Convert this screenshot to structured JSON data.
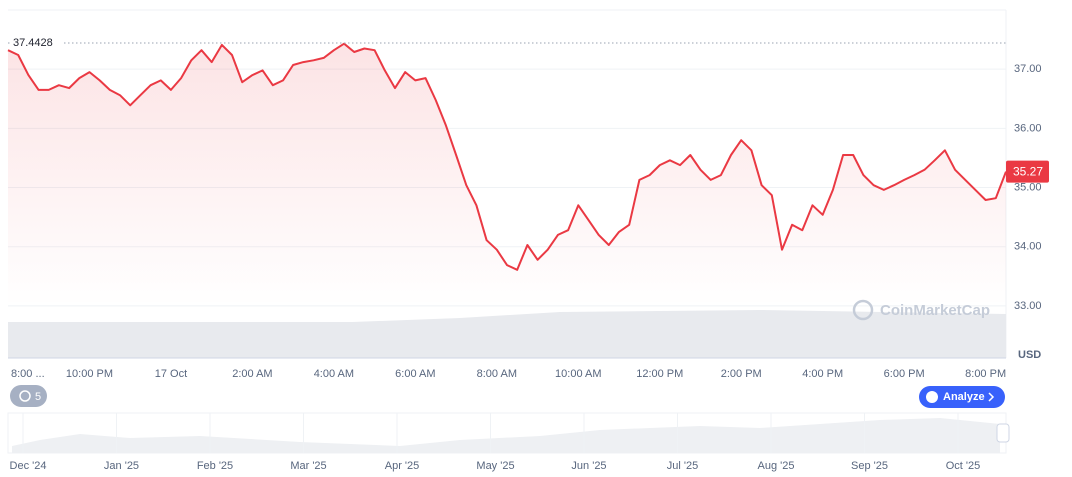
{
  "chart_data": {
    "type": "line",
    "color": "#ea3943",
    "y_unit": "USD",
    "watermark": "CoinMarketCap",
    "reference_line": 37.4428,
    "history_count": 5,
    "analyze_button": "Analyze",
    "ylim": [
      32.12,
      38.0
    ],
    "yticks": [
      {
        "value": 33,
        "label": "33.00"
      },
      {
        "value": 34,
        "label": "34.00"
      },
      {
        "value": 35,
        "label": "35.00"
      },
      {
        "value": 36,
        "label": "36.00"
      },
      {
        "value": 37,
        "label": "37.00"
      }
    ],
    "categories": [
      "8:00 ...",
      null,
      null,
      null,
      null,
      null,
      null,
      null,
      "10:00 PM",
      null,
      null,
      null,
      null,
      null,
      null,
      null,
      "17 Oct",
      null,
      null,
      null,
      null,
      null,
      null,
      null,
      "2:00 AM",
      null,
      null,
      null,
      null,
      null,
      null,
      null,
      "4:00 AM",
      null,
      null,
      null,
      null,
      null,
      null,
      null,
      "6:00 AM",
      null,
      null,
      null,
      null,
      null,
      null,
      null,
      "8:00 AM",
      null,
      null,
      null,
      null,
      null,
      null,
      null,
      "10:00 AM",
      null,
      null,
      null,
      null,
      null,
      null,
      null,
      "12:00 PM",
      null,
      null,
      null,
      null,
      null,
      null,
      null,
      "2:00 PM",
      null,
      null,
      null,
      null,
      null,
      null,
      null,
      "4:00 PM",
      null,
      null,
      null,
      null,
      null,
      null,
      null,
      "6:00 PM",
      null,
      null,
      null,
      null,
      null,
      null,
      null,
      "8:00 PM",
      null,
      null
    ],
    "values": [
      37.32,
      37.24,
      36.9,
      36.65,
      36.65,
      36.73,
      36.68,
      36.85,
      36.95,
      36.81,
      36.65,
      36.56,
      36.39,
      36.56,
      36.73,
      36.81,
      36.65,
      36.85,
      37.15,
      37.32,
      37.12,
      37.41,
      37.24,
      36.78,
      36.9,
      36.98,
      36.73,
      36.81,
      37.07,
      37.12,
      37.15,
      37.19,
      37.32,
      37.43,
      37.29,
      37.35,
      37.32,
      36.98,
      36.68,
      36.95,
      36.81,
      36.85,
      36.48,
      36.05,
      35.55,
      35.04,
      34.7,
      34.11,
      33.95,
      33.69,
      33.61,
      34.03,
      33.78,
      33.95,
      34.2,
      34.28,
      34.7,
      34.45,
      34.2,
      34.03,
      34.25,
      34.37,
      35.13,
      35.21,
      35.38,
      35.46,
      35.38,
      35.55,
      35.3,
      35.13,
      35.21,
      35.55,
      35.8,
      35.63,
      35.04,
      34.87,
      33.95,
      34.37,
      34.28,
      34.7,
      34.54,
      34.96,
      35.55,
      35.55,
      35.21,
      35.04,
      34.96,
      35.04,
      35.13,
      35.21,
      35.3,
      35.46,
      35.63,
      35.3,
      35.13,
      34.96,
      34.79,
      34.82,
      35.27
    ],
    "navigator_labels": [
      "Dec '24",
      "Jan '25",
      "Feb '25",
      "Mar '25",
      "Apr '25",
      "May '25",
      "Jun '25",
      "Jul '25",
      "Aug '25",
      "Sep '25",
      "Oct '25"
    ]
  }
}
